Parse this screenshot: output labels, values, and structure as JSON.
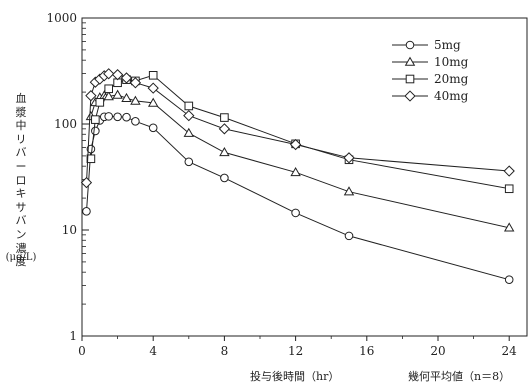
{
  "chart_data": {
    "type": "line",
    "y_scale": "log",
    "xlim": [
      0,
      25
    ],
    "ylim": [
      1,
      1000
    ],
    "x_ticks": [
      0,
      4,
      8,
      12,
      16,
      20,
      24
    ],
    "y_ticks": [
      1,
      10,
      100,
      1000
    ],
    "x_tick_labels": [
      "0",
      "4",
      "8",
      "12",
      "16",
      "20",
      "24"
    ],
    "y_tick_labels": [
      "1",
      "10",
      "100",
      "1000"
    ],
    "ylabel": "血漿中リバーロキサバン濃度",
    "ylabel_unit": "(μg/L)",
    "xlabel": "投与後時間（hr）",
    "footnote": "幾何平均値（n＝8）",
    "legend_position": "top-right",
    "series": [
      {
        "name": "5mg",
        "marker": "circle",
        "x": [
          0.25,
          0.5,
          0.75,
          1,
          1.25,
          1.5,
          2,
          2.5,
          3,
          4,
          6,
          8,
          12,
          15,
          24
        ],
        "y": [
          15,
          58,
          86,
          108,
          117,
          118,
          117,
          116,
          106,
          92,
          44,
          31,
          14.5,
          8.8,
          3.4
        ]
      },
      {
        "name": "10mg",
        "marker": "triangle",
        "x": [
          0.5,
          0.75,
          1,
          1.25,
          1.5,
          2,
          2.5,
          3,
          4,
          6,
          8,
          12,
          15,
          24
        ],
        "y": [
          118,
          160,
          178,
          185,
          182,
          188,
          175,
          165,
          158,
          82,
          54,
          35,
          23,
          10.5
        ]
      },
      {
        "name": "20mg",
        "marker": "square",
        "x": [
          0.5,
          0.75,
          1,
          1.5,
          2,
          2.5,
          3,
          4,
          6,
          8,
          12,
          15,
          24
        ],
        "y": [
          47,
          110,
          160,
          215,
          245,
          262,
          255,
          288,
          148,
          115,
          65,
          46,
          24.5
        ]
      },
      {
        "name": "40mg",
        "marker": "diamond",
        "x": [
          0.25,
          0.5,
          0.75,
          1,
          1.25,
          1.5,
          2,
          2.5,
          3,
          4,
          6,
          8,
          12,
          15,
          24
        ],
        "y": [
          28,
          185,
          248,
          265,
          285,
          298,
          292,
          272,
          245,
          218,
          120,
          90,
          64,
          48,
          36
        ]
      }
    ]
  }
}
